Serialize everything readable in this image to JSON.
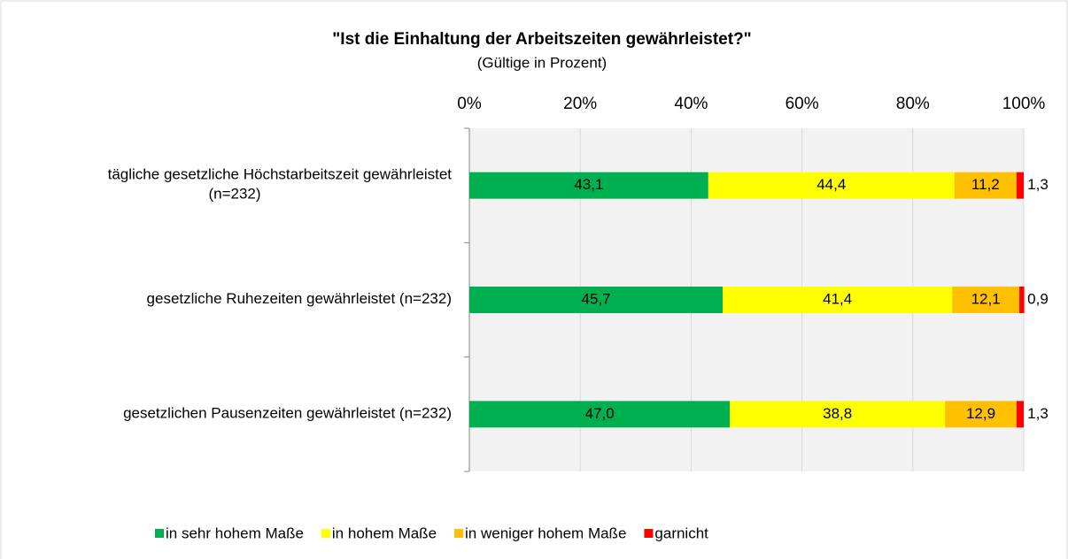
{
  "chart_data": {
    "type": "stacked_barh",
    "title": "\"Ist die Einhaltung der Arbeitszeiten gewährleistet?\"",
    "subtitle": "(Gültige in Prozent)",
    "categories": [
      "tägliche gesetzliche Höchstarbeitszeit gewährleistet\n(n=232)",
      "gesetzliche Ruhezeiten gewährleistet (n=232)",
      "gesetzlichen Pausenzeiten gewährleistet (n=232)"
    ],
    "series": [
      {
        "name": "in sehr hohem Maße",
        "color": "#00b050",
        "values": [
          43.1,
          45.7,
          47.0
        ],
        "value_labels": [
          "43,1",
          "45,7",
          "47,0"
        ]
      },
      {
        "name": "in hohem Maße",
        "color": "#ffff00",
        "values": [
          44.4,
          41.4,
          38.8
        ],
        "value_labels": [
          "44,4",
          "41,4",
          "38,8"
        ]
      },
      {
        "name": "in weniger hohem Maße",
        "color": "#ffc000",
        "values": [
          11.2,
          12.1,
          12.9
        ],
        "value_labels": [
          "11,2",
          "12,1",
          "12,9"
        ]
      },
      {
        "name": "garnicht",
        "color": "#ff0000",
        "values": [
          1.3,
          0.9,
          1.3
        ],
        "value_labels": [
          "1,3",
          "0,9",
          "1,3"
        ]
      }
    ],
    "xlim": [
      0,
      100
    ],
    "xticks": [
      {
        "value": 0,
        "label": "0%"
      },
      {
        "value": 20,
        "label": "20%"
      },
      {
        "value": 40,
        "label": "40%"
      },
      {
        "value": 60,
        "label": "60%"
      },
      {
        "value": 80,
        "label": "80%"
      },
      {
        "value": 100,
        "label": "100%"
      }
    ],
    "grid": true,
    "legend": "bottom"
  }
}
